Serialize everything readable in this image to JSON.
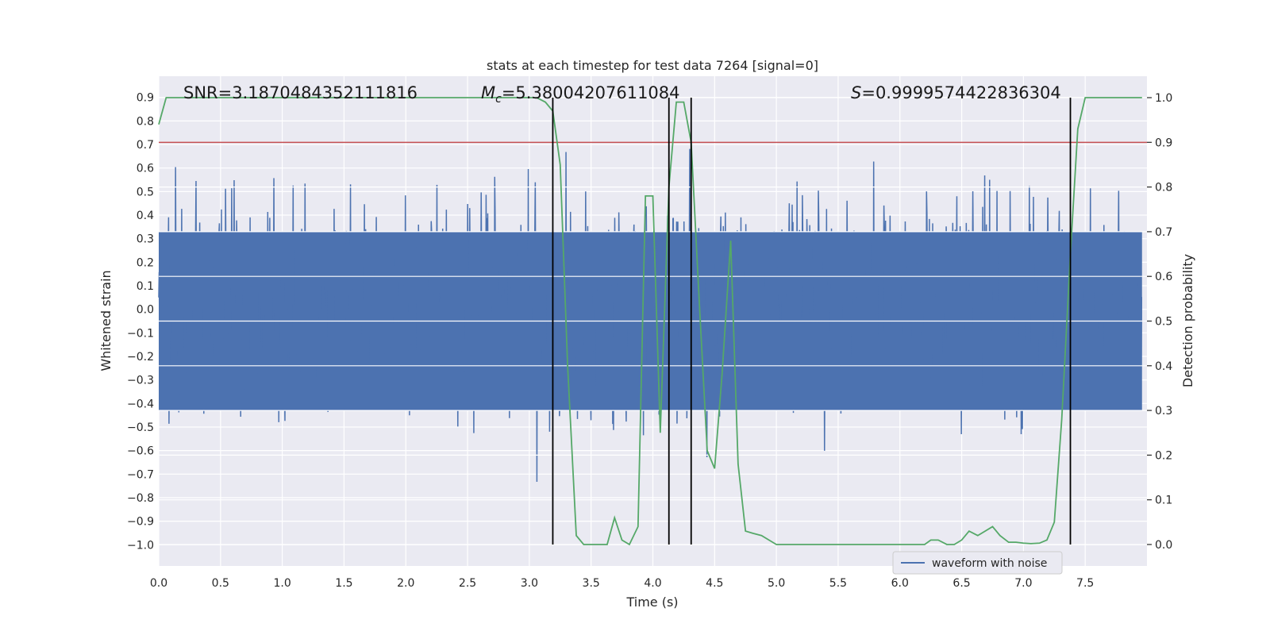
{
  "chart_data": {
    "type": "line",
    "title": "stats at each timestep for test data 7264 [signal=0]",
    "xlabel": "Time (s)",
    "ylabel_left": "Whitened strain",
    "ylabel_right": "Detection probability",
    "xlim": [
      0,
      8
    ],
    "ylim_left": [
      -1.09,
      0.99
    ],
    "ylim_right": [
      -0.048,
      1.048
    ],
    "x_ticks": [
      0.0,
      0.5,
      1.0,
      1.5,
      2.0,
      2.5,
      3.0,
      3.5,
      4.0,
      4.5,
      5.0,
      5.5,
      6.0,
      6.5,
      7.0,
      7.5
    ],
    "x_tick_labels": [
      "0.0",
      "0.5",
      "1.0",
      "1.5",
      "2.0",
      "2.5",
      "3.0",
      "3.5",
      "4.0",
      "4.5",
      "5.0",
      "5.5",
      "6.0",
      "6.5",
      "7.0",
      "7.5"
    ],
    "y_left_ticks": [
      0.9,
      0.8,
      0.7,
      0.6,
      0.5,
      0.4,
      0.3,
      0.2,
      0.1,
      0.0,
      -0.1,
      -0.2,
      -0.3,
      -0.4,
      -0.5,
      -0.6,
      -0.7,
      -0.8,
      -0.9,
      -1.0
    ],
    "y_left_tick_labels": [
      "0.9",
      "0.8",
      "0.7",
      "0.6",
      "0.5",
      "0.4",
      "0.3",
      "0.2",
      "0.1",
      "0.0",
      "−0.1",
      "−0.2",
      "−0.3",
      "−0.4",
      "−0.5",
      "−0.6",
      "−0.7",
      "−0.8",
      "−0.9",
      "−1.0"
    ],
    "y_right_ticks": [
      1.0,
      0.9,
      0.8,
      0.7,
      0.6,
      0.5,
      0.4,
      0.3,
      0.2,
      0.1,
      0.0
    ],
    "y_right_tick_labels": [
      "1.0",
      "0.9",
      "0.8",
      "0.7",
      "0.6",
      "0.5",
      "0.4",
      "0.3",
      "0.2",
      "0.1",
      "0.0"
    ],
    "annotations": {
      "snr": "SNR=3.1870484352111816",
      "mc_symbol": "M",
      "mc_sub": "c",
      "mc_value": "=5.38004207611084",
      "s_symbol": "S",
      "s_value": "=0.9999574422836304"
    },
    "threshold_right": 0.9,
    "vertical_lines_x": [
      3.19,
      4.13,
      4.31,
      7.38
    ],
    "waveform": {
      "name": "waveform with noise",
      "description_range": [
        -1.0,
        0.9
      ],
      "dense_envelope": [
        -0.43,
        0.33
      ]
    },
    "detection_probability": {
      "x": [
        0.0,
        0.06,
        0.13,
        0.19,
        0.25,
        0.5,
        1.0,
        1.5,
        2.0,
        2.5,
        2.8,
        3.0,
        3.06,
        3.13,
        3.19,
        3.25,
        3.31,
        3.38,
        3.44,
        3.5,
        3.56,
        3.63,
        3.69,
        3.75,
        3.81,
        3.88,
        3.94,
        4.0,
        4.06,
        4.13,
        4.19,
        4.25,
        4.31,
        4.38,
        4.44,
        4.5,
        4.56,
        4.63,
        4.69,
        4.75,
        4.81,
        4.88,
        4.94,
        5.0,
        5.2,
        5.4,
        5.6,
        5.8,
        6.0,
        6.2,
        6.25,
        6.31,
        6.38,
        6.44,
        6.5,
        6.56,
        6.63,
        6.69,
        6.75,
        6.81,
        6.88,
        6.94,
        7.0,
        7.06,
        7.13,
        7.19,
        7.25,
        7.31,
        7.38,
        7.44,
        7.5,
        7.6,
        7.8,
        7.96
      ],
      "y": [
        0.94,
        1.0,
        1.0,
        1.0,
        1.0,
        1.0,
        1.0,
        1.0,
        1.0,
        1.0,
        1.0,
        1.0,
        1.0,
        0.99,
        0.97,
        0.85,
        0.4,
        0.02,
        0.0,
        0.0,
        0.0,
        0.0,
        0.06,
        0.01,
        0.0,
        0.04,
        0.78,
        0.78,
        0.25,
        0.8,
        0.99,
        0.99,
        0.9,
        0.52,
        0.21,
        0.17,
        0.38,
        0.68,
        0.18,
        0.03,
        0.025,
        0.02,
        0.01,
        0.0,
        0.0,
        0.0,
        0.0,
        0.0,
        0.0,
        0.0,
        0.01,
        0.01,
        0.0,
        0.0,
        0.01,
        0.03,
        0.02,
        0.03,
        0.04,
        0.02,
        0.005,
        0.005,
        0.003,
        0.002,
        0.003,
        0.01,
        0.05,
        0.28,
        0.65,
        0.93,
        1.0,
        1.0,
        1.0,
        1.0
      ]
    },
    "legend": {
      "position": "lower-right",
      "entries": [
        "waveform with noise"
      ]
    },
    "grid": true
  },
  "colors": {
    "background": "#eaeaf2",
    "grid": "#ffffff",
    "waveform": "#4c72b0",
    "probability": "#55a868",
    "threshold": "#c44e52",
    "vline": "#000000"
  }
}
